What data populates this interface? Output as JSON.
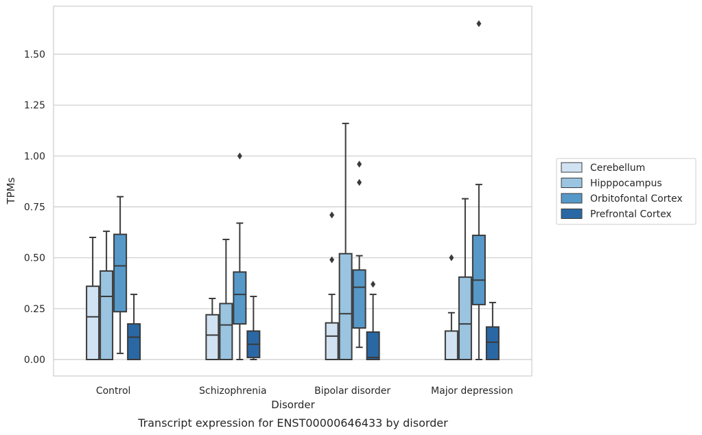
{
  "chart_data": {
    "type": "box",
    "title": "",
    "caption": "Transcript expression for ENST00000646433 by disorder",
    "xlabel": "Disorder",
    "ylabel": "TPMs",
    "ylim": [
      -0.08,
      1.75
    ],
    "yticks": [
      0.0,
      0.25,
      0.5,
      0.75,
      1.0,
      1.25,
      1.5
    ],
    "ytick_labels": [
      "0.00",
      "0.25",
      "0.50",
      "0.75",
      "1.00",
      "1.25",
      "1.50"
    ],
    "grid": "horizontal",
    "legend_position": "right-outside",
    "categories": [
      "Control",
      "Schizophrenia",
      "Bipolar disorder",
      "Major depression"
    ],
    "series": [
      {
        "name": "Cerebellum",
        "color": "#d1e2f2",
        "boxes": [
          {
            "whisker_low": 0.0,
            "q1": 0.0,
            "median": 0.21,
            "q3": 0.36,
            "whisker_high": 0.6,
            "outliers": []
          },
          {
            "whisker_low": 0.0,
            "q1": 0.0,
            "median": 0.12,
            "q3": 0.22,
            "whisker_high": 0.3,
            "outliers": []
          },
          {
            "whisker_low": 0.0,
            "q1": 0.0,
            "median": 0.115,
            "q3": 0.18,
            "whisker_high": 0.32,
            "outliers": [
              0.49,
              0.71
            ]
          },
          {
            "whisker_low": 0.0,
            "q1": 0.0,
            "median": 0.0,
            "q3": 0.14,
            "whisker_high": 0.23,
            "outliers": [
              0.5
            ]
          }
        ]
      },
      {
        "name": "Hipppocampus",
        "color": "#9ac4e0",
        "boxes": [
          {
            "whisker_low": 0.0,
            "q1": 0.0,
            "median": 0.31,
            "q3": 0.435,
            "whisker_high": 0.63,
            "outliers": []
          },
          {
            "whisker_low": 0.0,
            "q1": 0.0,
            "median": 0.17,
            "q3": 0.275,
            "whisker_high": 0.59,
            "outliers": []
          },
          {
            "whisker_low": 0.0,
            "q1": 0.0,
            "median": 0.225,
            "q3": 0.52,
            "whisker_high": 1.16,
            "outliers": []
          },
          {
            "whisker_low": 0.0,
            "q1": 0.0,
            "median": 0.175,
            "q3": 0.405,
            "whisker_high": 0.79,
            "outliers": []
          }
        ]
      },
      {
        "name": "Orbitofontal Cortex",
        "color": "#5699c9",
        "boxes": [
          {
            "whisker_low": 0.03,
            "q1": 0.235,
            "median": 0.46,
            "q3": 0.615,
            "whisker_high": 0.8,
            "outliers": []
          },
          {
            "whisker_low": 0.0,
            "q1": 0.175,
            "median": 0.32,
            "q3": 0.43,
            "whisker_high": 0.67,
            "outliers": [
              1.0
            ]
          },
          {
            "whisker_low": 0.06,
            "q1": 0.155,
            "median": 0.355,
            "q3": 0.44,
            "whisker_high": 0.51,
            "outliers": [
              0.87,
              0.96
            ]
          },
          {
            "whisker_low": 0.0,
            "q1": 0.27,
            "median": 0.39,
            "q3": 0.61,
            "whisker_high": 0.86,
            "outliers": [
              1.65
            ]
          }
        ]
      },
      {
        "name": "Prefrontal Cortex",
        "color": "#2a68a5",
        "boxes": [
          {
            "whisker_low": 0.0,
            "q1": 0.0,
            "median": 0.11,
            "q3": 0.175,
            "whisker_high": 0.32,
            "outliers": []
          },
          {
            "whisker_low": 0.0,
            "q1": 0.01,
            "median": 0.075,
            "q3": 0.14,
            "whisker_high": 0.31,
            "outliers": []
          },
          {
            "whisker_low": 0.0,
            "q1": 0.0,
            "median": 0.01,
            "q3": 0.135,
            "whisker_high": 0.32,
            "outliers": [
              0.37
            ]
          },
          {
            "whisker_low": 0.0,
            "q1": 0.0,
            "median": 0.085,
            "q3": 0.16,
            "whisker_high": 0.28,
            "outliers": []
          }
        ]
      }
    ]
  }
}
